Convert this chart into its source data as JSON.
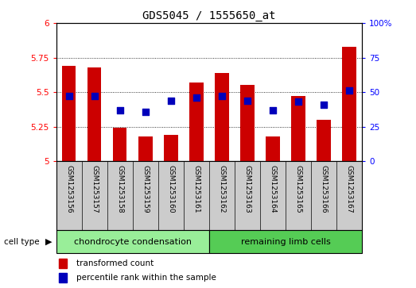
{
  "title": "GDS5045 / 1555650_at",
  "samples": [
    "GSM1253156",
    "GSM1253157",
    "GSM1253158",
    "GSM1253159",
    "GSM1253160",
    "GSM1253161",
    "GSM1253162",
    "GSM1253163",
    "GSM1253164",
    "GSM1253165",
    "GSM1253166",
    "GSM1253167"
  ],
  "transformed_count": [
    5.69,
    5.68,
    5.24,
    5.18,
    5.19,
    5.57,
    5.64,
    5.55,
    5.18,
    5.47,
    5.3,
    5.83
  ],
  "percentile_rank": [
    47,
    47,
    37,
    36,
    44,
    46,
    47,
    44,
    37,
    43,
    41,
    51
  ],
  "ylim_left": [
    5.0,
    6.0
  ],
  "yticks_left": [
    5.0,
    5.25,
    5.5,
    5.75,
    6.0
  ],
  "ytick_labels_left": [
    "5",
    "5.25",
    "5.5",
    "5.75",
    "6"
  ],
  "yticks_right": [
    0,
    25,
    50,
    75,
    100
  ],
  "ytick_labels_right": [
    "0",
    "25",
    "50",
    "75",
    "100%"
  ],
  "bar_color": "#cc0000",
  "dot_color": "#0000bb",
  "bar_width": 0.55,
  "dot_size": 30,
  "group1_label": "chondrocyte condensation",
  "group2_label": "remaining limb cells",
  "group1_color": "#99ee99",
  "group2_color": "#55cc55",
  "cell_type_label": "cell type",
  "legend_bar_label": "transformed count",
  "legend_dot_label": "percentile rank within the sample",
  "bg_color": "#cccccc",
  "plot_bg_color": "#ffffff",
  "title_fontsize": 10,
  "tick_fontsize": 7.5,
  "sample_fontsize": 6.5,
  "group_fontsize": 8,
  "legend_fontsize": 7.5
}
